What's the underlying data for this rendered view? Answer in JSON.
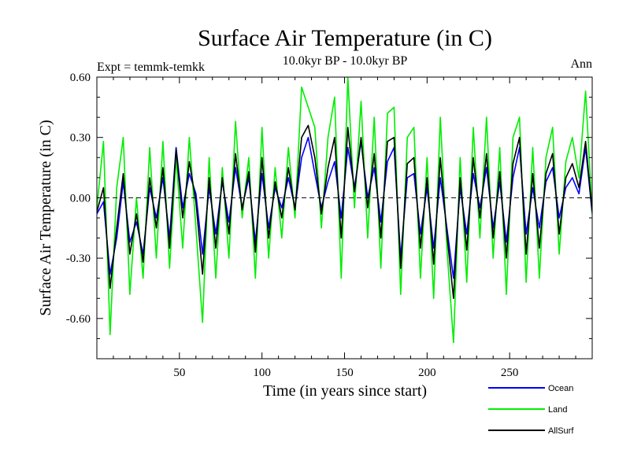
{
  "chart_data": {
    "type": "line",
    "title": "Surface Air Temperature (in C)",
    "subtitle": "10.0kyr BP - 10.0kyr BP",
    "left_label": "Expt = temmk-temkk",
    "right_label": "Ann",
    "xlabel": "Time (in years since start)",
    "ylabel": "Surface Air Temperature (in C)",
    "xlim": [
      0,
      300
    ],
    "ylim": [
      -0.8,
      0.6
    ],
    "x_ticks": [
      50,
      100,
      150,
      200,
      250
    ],
    "x_tick_labels": [
      "50",
      "100",
      "150",
      "200",
      "250"
    ],
    "y_ticks": [
      0.6,
      0.3,
      0.0,
      -0.3,
      -0.6
    ],
    "y_tick_labels": [
      "0.60",
      "0.30",
      "0.00",
      "-0.30",
      "-0.60"
    ],
    "zero_line": "dashed",
    "legend_position": "bottom-right",
    "series": [
      {
        "name": "Ocean",
        "color": "#0000ff",
        "x": [
          0,
          4,
          8,
          12,
          16,
          20,
          24,
          28,
          32,
          36,
          40,
          44,
          48,
          52,
          56,
          60,
          64,
          68,
          72,
          76,
          80,
          84,
          88,
          92,
          96,
          100,
          104,
          108,
          112,
          116,
          120,
          124,
          128,
          132,
          136,
          140,
          144,
          148,
          152,
          156,
          160,
          164,
          168,
          172,
          176,
          180,
          184,
          188,
          192,
          196,
          200,
          204,
          208,
          212,
          216,
          220,
          224,
          228,
          232,
          236,
          240,
          244,
          248,
          252,
          256,
          260,
          264,
          268,
          272,
          276,
          280,
          284,
          288,
          292,
          296,
          300
        ],
        "values": [
          -0.08,
          -0.02,
          -0.38,
          -0.2,
          0.08,
          -0.22,
          -0.12,
          -0.28,
          0.05,
          -0.1,
          0.1,
          -0.2,
          0.25,
          -0.05,
          0.12,
          0.02,
          -0.28,
          0.05,
          -0.18,
          0.08,
          -0.12,
          0.15,
          -0.05,
          0.1,
          -0.22,
          0.12,
          -0.15,
          0.05,
          -0.05,
          0.1,
          -0.05,
          0.2,
          0.3,
          0.12,
          -0.05,
          0.08,
          0.18,
          -0.1,
          0.25,
          0.05,
          0.28,
          0.0,
          0.15,
          -0.12,
          0.18,
          0.25,
          -0.3,
          0.1,
          0.12,
          -0.18,
          0.05,
          -0.25,
          0.1,
          -0.15,
          -0.4,
          0.05,
          -0.18,
          0.12,
          -0.05,
          0.15,
          -0.15,
          0.08,
          -0.22,
          0.1,
          0.25,
          -0.18,
          0.05,
          -0.15,
          0.08,
          0.15,
          -0.1,
          0.05,
          0.1,
          0.02,
          0.25,
          -0.08
        ]
      },
      {
        "name": "Land",
        "color": "#00ee00",
        "x": [
          0,
          4,
          8,
          12,
          16,
          20,
          24,
          28,
          32,
          36,
          40,
          44,
          48,
          52,
          56,
          60,
          64,
          68,
          72,
          76,
          80,
          84,
          88,
          92,
          96,
          100,
          104,
          108,
          112,
          116,
          120,
          124,
          128,
          132,
          136,
          140,
          144,
          148,
          152,
          156,
          160,
          164,
          168,
          172,
          176,
          180,
          184,
          188,
          192,
          196,
          200,
          204,
          208,
          212,
          216,
          220,
          224,
          228,
          232,
          236,
          240,
          244,
          248,
          252,
          256,
          260,
          264,
          268,
          272,
          276,
          280,
          284,
          288,
          292,
          296,
          300
        ],
        "values": [
          -0.05,
          0.28,
          -0.68,
          0.05,
          0.3,
          -0.48,
          0.0,
          -0.4,
          0.25,
          -0.3,
          0.28,
          -0.35,
          0.2,
          -0.25,
          0.3,
          -0.15,
          -0.62,
          0.2,
          -0.4,
          0.15,
          -0.3,
          0.38,
          -0.1,
          0.2,
          -0.4,
          0.35,
          -0.3,
          0.15,
          -0.2,
          0.25,
          -0.1,
          0.55,
          0.45,
          0.35,
          -0.15,
          0.3,
          0.5,
          -0.4,
          0.6,
          -0.05,
          0.48,
          -0.2,
          0.4,
          -0.35,
          0.42,
          0.45,
          -0.48,
          0.3,
          0.35,
          -0.4,
          0.2,
          -0.5,
          0.4,
          -0.25,
          -0.72,
          0.2,
          -0.42,
          0.35,
          -0.2,
          0.4,
          -0.3,
          0.25,
          -0.48,
          0.3,
          0.4,
          -0.42,
          0.25,
          -0.4,
          0.2,
          0.35,
          -0.28,
          0.18,
          0.3,
          0.1,
          0.53,
          -0.08
        ]
      },
      {
        "name": "AllSurf",
        "color": "#000000",
        "x": [
          0,
          4,
          8,
          12,
          16,
          20,
          24,
          28,
          32,
          36,
          40,
          44,
          48,
          52,
          56,
          60,
          64,
          68,
          72,
          76,
          80,
          84,
          88,
          92,
          96,
          100,
          104,
          108,
          112,
          116,
          120,
          124,
          128,
          132,
          136,
          140,
          144,
          148,
          152,
          156,
          160,
          164,
          168,
          172,
          176,
          180,
          184,
          188,
          192,
          196,
          200,
          204,
          208,
          212,
          216,
          220,
          224,
          228,
          232,
          236,
          240,
          244,
          248,
          252,
          256,
          260,
          264,
          268,
          272,
          276,
          280,
          284,
          288,
          292,
          296,
          300
        ],
        "values": [
          -0.07,
          0.05,
          -0.45,
          -0.15,
          0.12,
          -0.28,
          -0.08,
          -0.32,
          0.1,
          -0.15,
          0.15,
          -0.25,
          0.24,
          -0.1,
          0.18,
          -0.02,
          -0.38,
          0.1,
          -0.25,
          0.1,
          -0.18,
          0.22,
          -0.06,
          0.13,
          -0.27,
          0.2,
          -0.2,
          0.08,
          -0.1,
          0.15,
          -0.06,
          0.3,
          0.36,
          0.2,
          -0.08,
          0.15,
          0.3,
          -0.2,
          0.35,
          0.03,
          0.3,
          -0.05,
          0.22,
          -0.2,
          0.28,
          0.3,
          -0.35,
          0.17,
          0.2,
          -0.25,
          0.1,
          -0.33,
          0.2,
          -0.18,
          -0.5,
          0.1,
          -0.26,
          0.2,
          -0.1,
          0.22,
          -0.2,
          0.13,
          -0.3,
          0.17,
          0.3,
          -0.28,
          0.12,
          -0.25,
          0.12,
          0.22,
          -0.18,
          0.1,
          0.17,
          0.05,
          0.28,
          -0.07
        ]
      }
    ]
  }
}
